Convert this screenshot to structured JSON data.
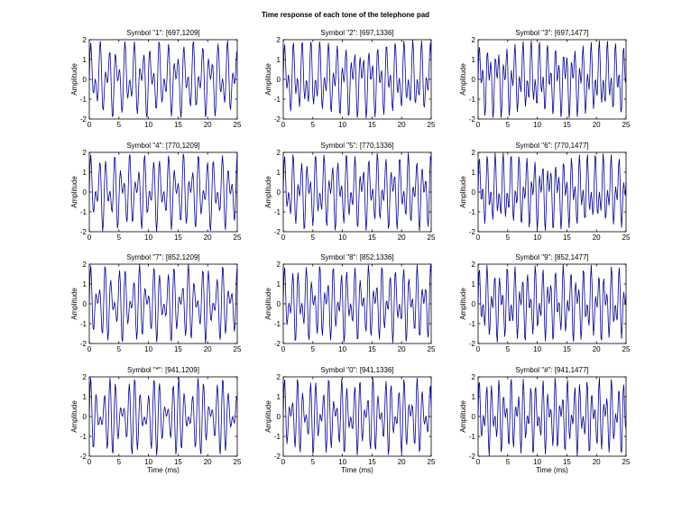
{
  "figure": {
    "title": "Time response of each tone of the telephone pad"
  },
  "chart_data": [
    {
      "type": "line",
      "title": "Symbol \"1\": [697,1209]",
      "symbol": "1",
      "frequencies_hz": [
        697,
        1209
      ],
      "xlabel": "",
      "ylabel": "Amplitude",
      "xlim": [
        0,
        25
      ],
      "ylim": [
        -2,
        2
      ],
      "xticks": [
        0,
        5,
        10,
        15,
        20,
        25
      ],
      "yticks": [
        -2,
        -1,
        0,
        1,
        2
      ],
      "x_sample_step": 0.125,
      "series": [
        {
          "color": "#00008b",
          "equation": "sin(2*pi*697*t) + sin(2*pi*1209*t), t in ms/1000"
        }
      ]
    },
    {
      "type": "line",
      "title": "Symbol \"2\": [697,1336]",
      "symbol": "2",
      "frequencies_hz": [
        697,
        1336
      ],
      "xlabel": "",
      "ylabel": "Amplitude",
      "xlim": [
        0,
        25
      ],
      "ylim": [
        -2,
        2
      ],
      "xticks": [
        0,
        5,
        10,
        15,
        20,
        25
      ],
      "yticks": [
        -2,
        -1,
        0,
        1,
        2
      ],
      "x_sample_step": 0.125,
      "series": [
        {
          "color": "#00008b",
          "equation": "sin(2*pi*697*t) + sin(2*pi*1336*t), t in ms/1000"
        }
      ]
    },
    {
      "type": "line",
      "title": "Symbol \"3\": [697,1477]",
      "symbol": "3",
      "frequencies_hz": [
        697,
        1477
      ],
      "xlabel": "",
      "ylabel": "Amplitude",
      "xlim": [
        0,
        25
      ],
      "ylim": [
        -2,
        2
      ],
      "xticks": [
        0,
        5,
        10,
        15,
        20,
        25
      ],
      "yticks": [
        -2,
        -1,
        0,
        1,
        2
      ],
      "x_sample_step": 0.125,
      "series": [
        {
          "color": "#00008b",
          "equation": "sin(2*pi*697*t) + sin(2*pi*1477*t), t in ms/1000"
        }
      ]
    },
    {
      "type": "line",
      "title": "Symbol \"4\": [770,1209]",
      "symbol": "4",
      "frequencies_hz": [
        770,
        1209
      ],
      "xlabel": "",
      "ylabel": "Amplitude",
      "xlim": [
        0,
        25
      ],
      "ylim": [
        -2,
        2
      ],
      "xticks": [
        0,
        5,
        10,
        15,
        20,
        25
      ],
      "yticks": [
        -2,
        -1,
        0,
        1,
        2
      ],
      "x_sample_step": 0.125,
      "series": [
        {
          "color": "#00008b",
          "equation": "sin(2*pi*770*t) + sin(2*pi*1209*t), t in ms/1000"
        }
      ]
    },
    {
      "type": "line",
      "title": "Symbol \"5\": [770,1336]",
      "symbol": "5",
      "frequencies_hz": [
        770,
        1336
      ],
      "xlabel": "",
      "ylabel": "Amplitude",
      "xlim": [
        0,
        25
      ],
      "ylim": [
        -2,
        2
      ],
      "xticks": [
        0,
        5,
        10,
        15,
        20,
        25
      ],
      "yticks": [
        -2,
        -1,
        0,
        1,
        2
      ],
      "x_sample_step": 0.125,
      "series": [
        {
          "color": "#00008b",
          "equation": "sin(2*pi*770*t) + sin(2*pi*1336*t), t in ms/1000"
        }
      ]
    },
    {
      "type": "line",
      "title": "Symbol \"6\": [770,1477]",
      "symbol": "6",
      "frequencies_hz": [
        770,
        1477
      ],
      "xlabel": "",
      "ylabel": "Amplitude",
      "xlim": [
        0,
        25
      ],
      "ylim": [
        -2,
        2
      ],
      "xticks": [
        0,
        5,
        10,
        15,
        20,
        25
      ],
      "yticks": [
        -2,
        -1,
        0,
        1,
        2
      ],
      "x_sample_step": 0.125,
      "series": [
        {
          "color": "#00008b",
          "equation": "sin(2*pi*770*t) + sin(2*pi*1477*t), t in ms/1000"
        }
      ]
    },
    {
      "type": "line",
      "title": "Symbol \"7\": [852,1209]",
      "symbol": "7",
      "frequencies_hz": [
        852,
        1209
      ],
      "xlabel": "",
      "ylabel": "Amplitude",
      "xlim": [
        0,
        25
      ],
      "ylim": [
        -2,
        2
      ],
      "xticks": [
        0,
        5,
        10,
        15,
        20,
        25
      ],
      "yticks": [
        -2,
        -1,
        0,
        1,
        2
      ],
      "x_sample_step": 0.125,
      "series": [
        {
          "color": "#00008b",
          "equation": "sin(2*pi*852*t) + sin(2*pi*1209*t), t in ms/1000"
        }
      ]
    },
    {
      "type": "line",
      "title": "Symbol \"8\": [852,1336]",
      "symbol": "8",
      "frequencies_hz": [
        852,
        1336
      ],
      "xlabel": "",
      "ylabel": "Amplitude",
      "xlim": [
        0,
        25
      ],
      "ylim": [
        -2,
        2
      ],
      "xticks": [
        0,
        5,
        10,
        15,
        20,
        25
      ],
      "yticks": [
        -2,
        -1,
        0,
        1,
        2
      ],
      "x_sample_step": 0.125,
      "series": [
        {
          "color": "#00008b",
          "equation": "sin(2*pi*852*t) + sin(2*pi*1336*t), t in ms/1000"
        }
      ]
    },
    {
      "type": "line",
      "title": "Symbol \"9\": [852,1477]",
      "symbol": "9",
      "frequencies_hz": [
        852,
        1477
      ],
      "xlabel": "",
      "ylabel": "Amplitude",
      "xlim": [
        0,
        25
      ],
      "ylim": [
        -2,
        2
      ],
      "xticks": [
        0,
        5,
        10,
        15,
        20,
        25
      ],
      "yticks": [
        -2,
        -1,
        0,
        1,
        2
      ],
      "x_sample_step": 0.125,
      "series": [
        {
          "color": "#00008b",
          "equation": "sin(2*pi*852*t) + sin(2*pi*1477*t), t in ms/1000"
        }
      ]
    },
    {
      "type": "line",
      "title": "Symbol \"*\": [941,1209]",
      "symbol": "*",
      "frequencies_hz": [
        941,
        1209
      ],
      "xlabel": "Time (ms)",
      "ylabel": "Amplitude",
      "xlim": [
        0,
        25
      ],
      "ylim": [
        -2,
        2
      ],
      "xticks": [
        0,
        5,
        10,
        15,
        20,
        25
      ],
      "yticks": [
        -2,
        -1,
        0,
        1,
        2
      ],
      "x_sample_step": 0.125,
      "series": [
        {
          "color": "#00008b",
          "equation": "sin(2*pi*941*t) + sin(2*pi*1209*t), t in ms/1000"
        }
      ]
    },
    {
      "type": "line",
      "title": "Symbol \"0\": [941,1336]",
      "symbol": "0",
      "frequencies_hz": [
        941,
        1336
      ],
      "xlabel": "Time (ms)",
      "ylabel": "Amplitude",
      "xlim": [
        0,
        25
      ],
      "ylim": [
        -2,
        2
      ],
      "xticks": [
        0,
        5,
        10,
        15,
        20,
        25
      ],
      "yticks": [
        -2,
        -1,
        0,
        1,
        2
      ],
      "x_sample_step": 0.125,
      "series": [
        {
          "color": "#00008b",
          "equation": "sin(2*pi*941*t) + sin(2*pi*1336*t), t in ms/1000"
        }
      ]
    },
    {
      "type": "line",
      "title": "Symbol \"#\": [941,1477]",
      "symbol": "#",
      "frequencies_hz": [
        941,
        1477
      ],
      "xlabel": "Time (ms)",
      "ylabel": "Amplitude",
      "xlim": [
        0,
        25
      ],
      "ylim": [
        -2,
        2
      ],
      "xticks": [
        0,
        5,
        10,
        15,
        20,
        25
      ],
      "yticks": [
        -2,
        -1,
        0,
        1,
        2
      ],
      "x_sample_step": 0.125,
      "series": [
        {
          "color": "#00008b",
          "equation": "sin(2*pi*941*t) + sin(2*pi*1477*t), t in ms/1000"
        }
      ]
    }
  ]
}
